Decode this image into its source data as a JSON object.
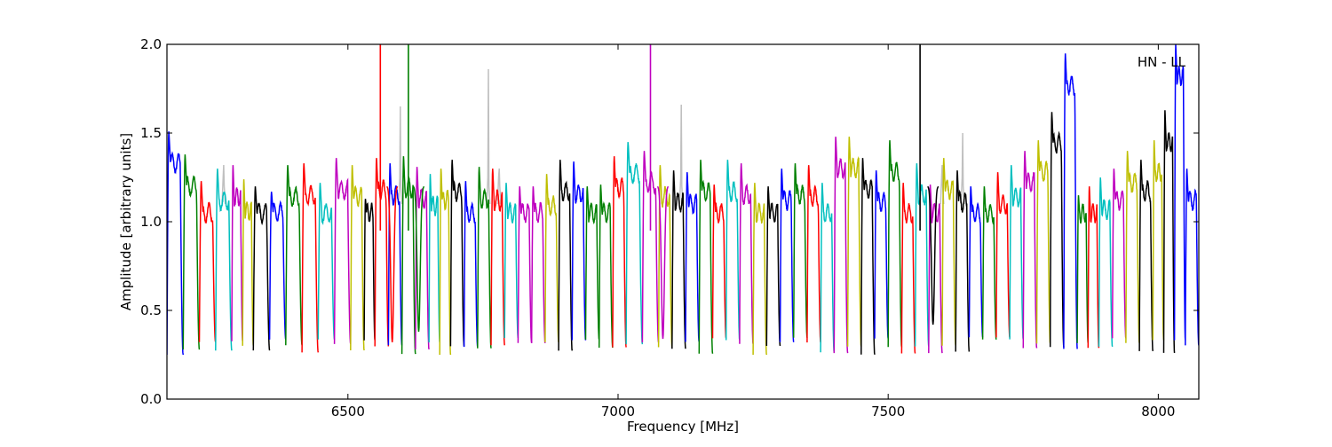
{
  "chart_data": {
    "type": "line",
    "xlabel": "Frequency [MHz]",
    "ylabel": "Amplitude [arbitrary units]",
    "xlim": [
      6165,
      8075
    ],
    "ylim": [
      0.0,
      2.0
    ],
    "x_ticks": [
      6500,
      7000,
      7500,
      8000
    ],
    "x_tick_labels": [
      "6500",
      "7000",
      "7500",
      "8000"
    ],
    "y_ticks": [
      0.0,
      0.5,
      1.0,
      1.5,
      2.0
    ],
    "y_tick_labels": [
      "0.0",
      "0.5",
      "1.0",
      "1.5",
      "2.0"
    ],
    "grid": false,
    "legend": "none",
    "annotation": "HN - LL",
    "colors": [
      "#0000ff",
      "#008000",
      "#ff0000",
      "#00bfbf",
      "#bf00bf",
      "#bfbf00",
      "#000000"
    ],
    "background_color": "#c0c0c0",
    "channel_width_mhz": 20,
    "channels": [
      {
        "start": 6165,
        "end": 6195,
        "color": "#0000ff",
        "peak": 1.51
      },
      {
        "start": 6195,
        "end": 6225,
        "color": "#008000",
        "peak": 1.38
      },
      {
        "start": 6225,
        "end": 6255,
        "color": "#ff0000",
        "peak": 1.23
      },
      {
        "start": 6255,
        "end": 6285,
        "color": "#00bfbf",
        "peak": 1.3
      },
      {
        "start": 6285,
        "end": 6305,
        "color": "#bf00bf",
        "peak": 1.32
      },
      {
        "start": 6305,
        "end": 6325,
        "color": "#bfbf00",
        "peak": 1.24
      },
      {
        "start": 6325,
        "end": 6355,
        "color": "#000000",
        "peak": 1.2
      },
      {
        "start": 6355,
        "end": 6385,
        "color": "#0000ff",
        "peak": 1.17
      },
      {
        "start": 6385,
        "end": 6415,
        "color": "#008000",
        "peak": 1.32
      },
      {
        "start": 6415,
        "end": 6445,
        "color": "#ff0000",
        "peak": 1.33
      },
      {
        "start": 6445,
        "end": 6475,
        "color": "#00bfbf",
        "peak": 1.22
      },
      {
        "start": 6475,
        "end": 6505,
        "color": "#bf00bf",
        "peak": 1.36
      },
      {
        "start": 6505,
        "end": 6530,
        "color": "#bfbf00",
        "peak": 1.32
      },
      {
        "start": 6530,
        "end": 6550,
        "color": "#000000",
        "peak": 1.13
      },
      {
        "start": 6550,
        "end": 6575,
        "color": "#ff0000",
        "peak": 1.36
      },
      {
        "start": 6575,
        "end": 6600,
        "color": "#0000ff",
        "peak": 1.33
      },
      {
        "start": 6600,
        "end": 6625,
        "color": "#008000",
        "peak": 1.37
      },
      {
        "start": 6625,
        "end": 6650,
        "color": "#bf00bf",
        "peak": 1.31
      },
      {
        "start": 6650,
        "end": 6670,
        "color": "#00bfbf",
        "peak": 1.27
      },
      {
        "start": 6670,
        "end": 6690,
        "color": "#bfbf00",
        "peak": 1.3
      },
      {
        "start": 6690,
        "end": 6715,
        "color": "#000000",
        "peak": 1.35
      },
      {
        "start": 6715,
        "end": 6740,
        "color": "#0000ff",
        "peak": 1.23
      },
      {
        "start": 6740,
        "end": 6765,
        "color": "#008000",
        "peak": 1.31
      },
      {
        "start": 6765,
        "end": 6790,
        "color": "#ff0000",
        "peak": 1.3
      },
      {
        "start": 6790,
        "end": 6815,
        "color": "#00bfbf",
        "peak": 1.22
      },
      {
        "start": 6815,
        "end": 6840,
        "color": "#bf00bf",
        "peak": 1.2
      },
      {
        "start": 6840,
        "end": 6865,
        "color": "#bf00bf",
        "peak": 1.2
      },
      {
        "start": 6865,
        "end": 6890,
        "color": "#bfbf00",
        "peak": 1.27
      },
      {
        "start": 6890,
        "end": 6915,
        "color": "#000000",
        "peak": 1.35
      },
      {
        "start": 6915,
        "end": 6940,
        "color": "#0000ff",
        "peak": 1.34
      },
      {
        "start": 6940,
        "end": 6965,
        "color": "#008000",
        "peak": 1.2
      },
      {
        "start": 6965,
        "end": 6990,
        "color": "#008000",
        "peak": 1.21
      },
      {
        "start": 6990,
        "end": 7015,
        "color": "#ff0000",
        "peak": 1.37
      },
      {
        "start": 7015,
        "end": 7045,
        "color": "#00bfbf",
        "peak": 1.45
      },
      {
        "start": 7045,
        "end": 7075,
        "color": "#bf00bf",
        "peak": 1.4
      },
      {
        "start": 7075,
        "end": 7100,
        "color": "#bfbf00",
        "peak": 1.32
      },
      {
        "start": 7100,
        "end": 7125,
        "color": "#000000",
        "peak": 1.29
      },
      {
        "start": 7125,
        "end": 7150,
        "color": "#0000ff",
        "peak": 1.28
      },
      {
        "start": 7150,
        "end": 7175,
        "color": "#008000",
        "peak": 1.35
      },
      {
        "start": 7175,
        "end": 7200,
        "color": "#ff0000",
        "peak": 1.21
      },
      {
        "start": 7200,
        "end": 7225,
        "color": "#00bfbf",
        "peak": 1.35
      },
      {
        "start": 7225,
        "end": 7250,
        "color": "#bf00bf",
        "peak": 1.33
      },
      {
        "start": 7250,
        "end": 7275,
        "color": "#bfbf00",
        "peak": 1.22
      },
      {
        "start": 7275,
        "end": 7300,
        "color": "#000000",
        "peak": 1.2
      },
      {
        "start": 7300,
        "end": 7325,
        "color": "#0000ff",
        "peak": 1.3
      },
      {
        "start": 7325,
        "end": 7350,
        "color": "#008000",
        "peak": 1.33
      },
      {
        "start": 7350,
        "end": 7375,
        "color": "#ff0000",
        "peak": 1.32
      },
      {
        "start": 7375,
        "end": 7400,
        "color": "#00bfbf",
        "peak": 1.22
      },
      {
        "start": 7400,
        "end": 7425,
        "color": "#bf00bf",
        "peak": 1.48
      },
      {
        "start": 7425,
        "end": 7450,
        "color": "#bfbf00",
        "peak": 1.48
      },
      {
        "start": 7450,
        "end": 7475,
        "color": "#000000",
        "peak": 1.36
      },
      {
        "start": 7475,
        "end": 7500,
        "color": "#0000ff",
        "peak": 1.29
      },
      {
        "start": 7500,
        "end": 7525,
        "color": "#008000",
        "peak": 1.46
      },
      {
        "start": 7525,
        "end": 7550,
        "color": "#ff0000",
        "peak": 1.22
      },
      {
        "start": 7550,
        "end": 7575,
        "color": "#00bfbf",
        "peak": 1.33
      },
      {
        "start": 7575,
        "end": 7600,
        "color": "#bf00bf",
        "peak": 1.21
      },
      {
        "start": 7600,
        "end": 7625,
        "color": "#bfbf00",
        "peak": 1.36
      },
      {
        "start": 7625,
        "end": 7650,
        "color": "#000000",
        "peak": 1.29
      },
      {
        "start": 7650,
        "end": 7675,
        "color": "#0000ff",
        "peak": 1.2
      },
      {
        "start": 7675,
        "end": 7700,
        "color": "#008000",
        "peak": 1.2
      },
      {
        "start": 7700,
        "end": 7725,
        "color": "#ff0000",
        "peak": 1.28
      },
      {
        "start": 7725,
        "end": 7750,
        "color": "#00bfbf",
        "peak": 1.32
      },
      {
        "start": 7750,
        "end": 7775,
        "color": "#bf00bf",
        "peak": 1.4
      },
      {
        "start": 7775,
        "end": 7800,
        "color": "#bfbf00",
        "peak": 1.46
      },
      {
        "start": 7800,
        "end": 7825,
        "color": "#000000",
        "peak": 1.62
      },
      {
        "start": 7825,
        "end": 7850,
        "color": "#0000ff",
        "peak": 1.95
      },
      {
        "start": 7850,
        "end": 7870,
        "color": "#008000",
        "peak": 1.15
      },
      {
        "start": 7870,
        "end": 7890,
        "color": "#ff0000",
        "peak": 1.2
      },
      {
        "start": 7890,
        "end": 7915,
        "color": "#00bfbf",
        "peak": 1.25
      },
      {
        "start": 7915,
        "end": 7940,
        "color": "#bf00bf",
        "peak": 1.3
      },
      {
        "start": 7940,
        "end": 7965,
        "color": "#bfbf00",
        "peak": 1.4
      },
      {
        "start": 7965,
        "end": 7990,
        "color": "#000000",
        "peak": 1.35
      },
      {
        "start": 7990,
        "end": 8010,
        "color": "#bfbf00",
        "peak": 1.46
      },
      {
        "start": 8010,
        "end": 8030,
        "color": "#000000",
        "peak": 1.63
      },
      {
        "start": 8030,
        "end": 8050,
        "color": "#0000ff",
        "peak": 2.0
      },
      {
        "start": 8050,
        "end": 8075,
        "color": "#0000ff",
        "peak": 1.3
      }
    ],
    "spikes": [
      {
        "x": 6560,
        "color": "#ff0000",
        "y_top": 2.0
      },
      {
        "x": 6612,
        "color": "#008000",
        "y_top": 2.0
      },
      {
        "x": 7060,
        "color": "#bf00bf",
        "y_top": 2.0
      },
      {
        "x": 7559,
        "color": "#000000",
        "y_top": 2.0
      }
    ],
    "dips": [
      {
        "x": 6582,
        "color": "#ff0000",
        "y_min": 0.32
      },
      {
        "x": 6631,
        "color": "#008000",
        "y_min": 0.38
      },
      {
        "x": 7083,
        "color": "#bf00bf",
        "y_min": 0.34
      },
      {
        "x": 7583,
        "color": "#000000",
        "y_min": 0.42
      }
    ],
    "background_peaks": [
      {
        "x": 6597,
        "y": 1.65
      },
      {
        "x": 6760,
        "y": 1.86
      },
      {
        "x": 6780,
        "y": 1.3
      },
      {
        "x": 6270,
        "y": 1.32
      },
      {
        "x": 7117,
        "y": 1.66
      },
      {
        "x": 7600,
        "y": 1.32
      },
      {
        "x": 7638,
        "y": 1.5
      }
    ]
  }
}
